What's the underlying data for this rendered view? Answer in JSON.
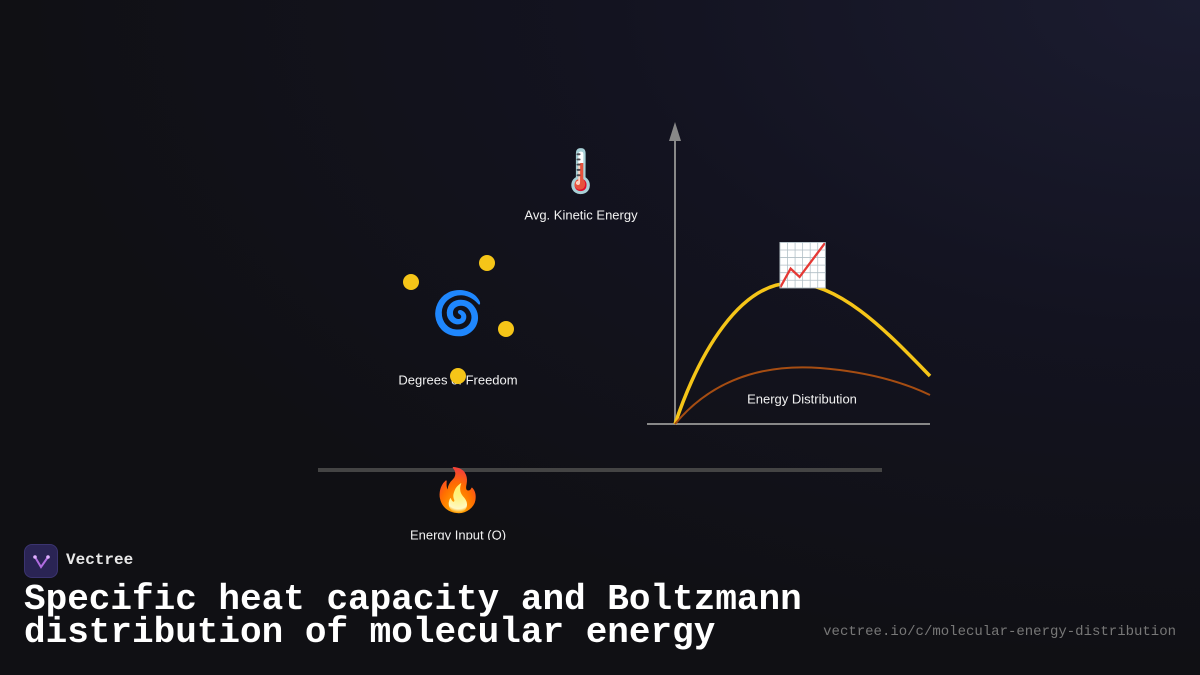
{
  "brand": {
    "name": "Vectree"
  },
  "title": "Specific heat capacity and Boltzmann distribution of molecular energy",
  "url": "vectree.io/c/molecular-energy-distribution",
  "nodes": [
    {
      "icon": "🌡️",
      "label": "Avg. Kinetic Energy"
    },
    {
      "icon": "🌀",
      "label": "Degrees of Freedom"
    },
    {
      "icon": "📈",
      "label": "Energy Distribution"
    },
    {
      "icon": "🔥",
      "label": "Energy Input (Q)"
    }
  ]
}
